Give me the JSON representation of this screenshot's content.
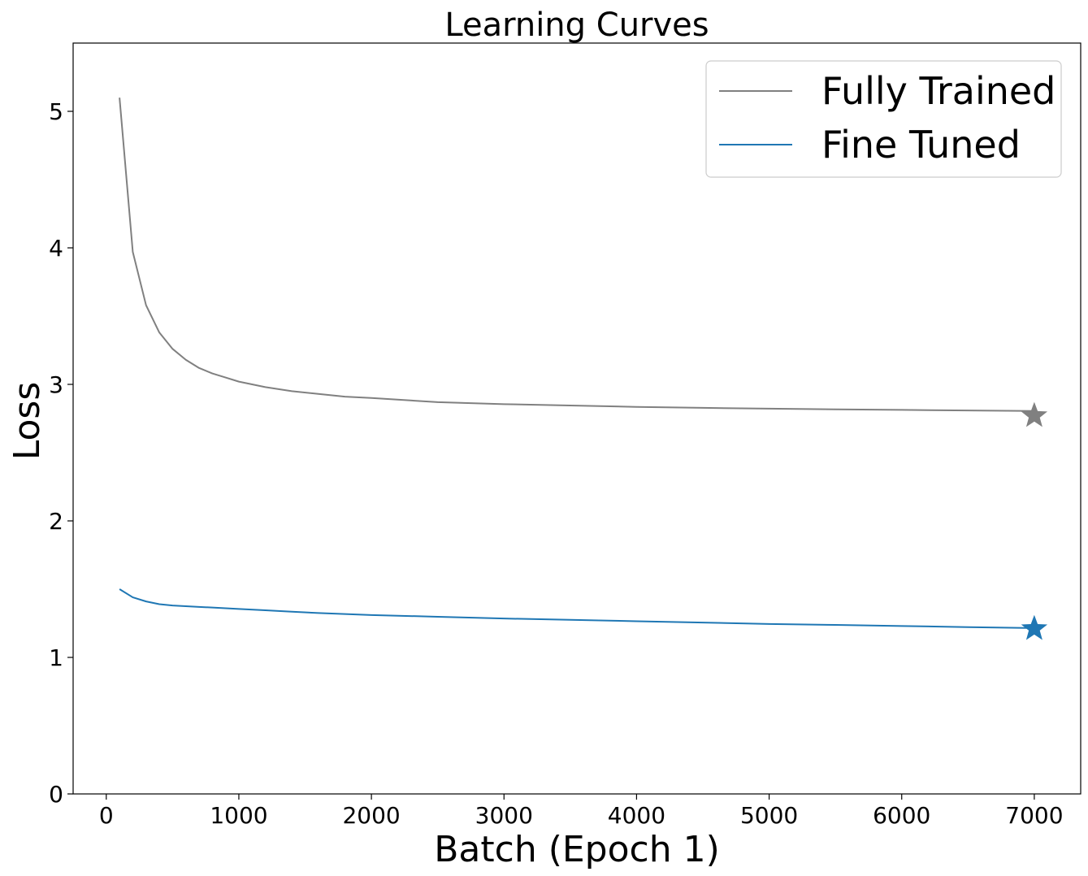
{
  "chart_data": {
    "type": "line",
    "title": "Learning Curves",
    "xlabel": "Batch (Epoch 1)",
    "ylabel": "Loss",
    "xlim": [
      -250,
      7350
    ],
    "ylim": [
      0,
      5.5
    ],
    "xticks": [
      0,
      1000,
      2000,
      3000,
      4000,
      5000,
      6000,
      7000
    ],
    "xtick_labels": [
      "0",
      "1000",
      "2000",
      "3000",
      "4000",
      "5000",
      "6000",
      "7000"
    ],
    "yticks": [
      0,
      1,
      2,
      3,
      4,
      5
    ],
    "ytick_labels": [
      "0",
      "1",
      "2",
      "3",
      "4",
      "5"
    ],
    "grid": false,
    "legend_position": "top-right",
    "series": [
      {
        "name": "Fully Trained",
        "color": "#808080",
        "x": [
          100,
          200,
          300,
          400,
          500,
          600,
          700,
          800,
          900,
          1000,
          1200,
          1400,
          1600,
          1800,
          2000,
          2500,
          3000,
          3500,
          4000,
          4500,
          5000,
          5500,
          6000,
          6500,
          7000
        ],
        "values": [
          5.1,
          3.97,
          3.58,
          3.38,
          3.26,
          3.18,
          3.12,
          3.08,
          3.05,
          3.02,
          2.98,
          2.95,
          2.93,
          2.91,
          2.9,
          2.87,
          2.855,
          2.845,
          2.835,
          2.828,
          2.822,
          2.817,
          2.813,
          2.809,
          2.805
        ],
        "final_marker": {
          "x": 7000,
          "y": 2.77,
          "shape": "star"
        }
      },
      {
        "name": "Fine Tuned",
        "color": "#1f77b4",
        "x": [
          100,
          200,
          300,
          400,
          500,
          600,
          700,
          800,
          900,
          1000,
          1200,
          1400,
          1600,
          1800,
          2000,
          2500,
          3000,
          3500,
          4000,
          4500,
          5000,
          5500,
          6000,
          6500,
          7000
        ],
        "values": [
          1.5,
          1.44,
          1.41,
          1.39,
          1.38,
          1.375,
          1.37,
          1.365,
          1.36,
          1.355,
          1.345,
          1.335,
          1.325,
          1.318,
          1.31,
          1.298,
          1.285,
          1.275,
          1.265,
          1.255,
          1.245,
          1.238,
          1.23,
          1.222,
          1.215
        ],
        "final_marker": {
          "x": 7000,
          "y": 1.21,
          "shape": "star"
        }
      }
    ]
  }
}
